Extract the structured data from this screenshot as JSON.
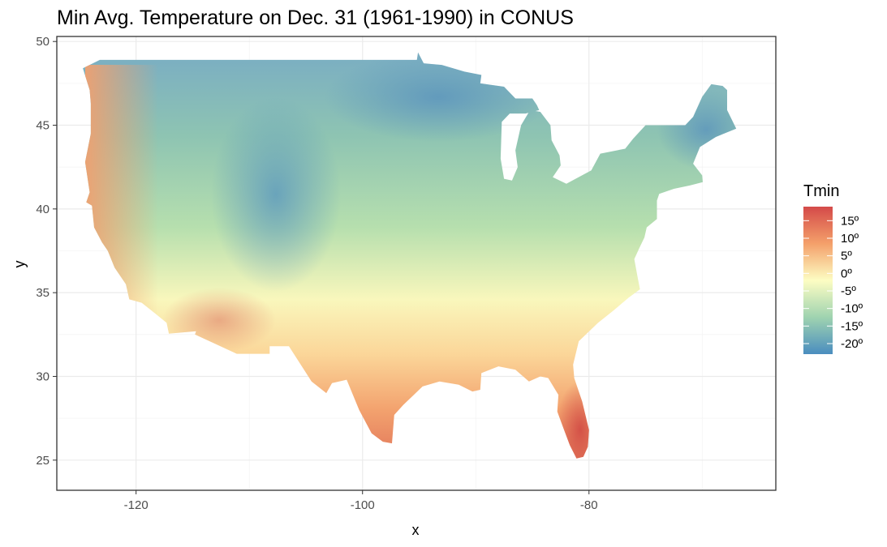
{
  "chart_data": {
    "type": "heatmap",
    "title": "Min Avg. Temperature on Dec. 31 (1961-1990) in CONUS",
    "xlabel": "x",
    "ylabel": "y",
    "xlim": [
      -127.0,
      -63.5
    ],
    "ylim": [
      23.2,
      50.3
    ],
    "x_ticks": [
      -120,
      -100,
      -80
    ],
    "x_tick_labels": [
      "-120",
      "-100",
      "-80"
    ],
    "y_ticks": [
      25,
      30,
      35,
      40,
      45,
      50
    ],
    "y_tick_labels": [
      "25",
      "30",
      "35",
      "40",
      "45",
      "50"
    ],
    "grid": true,
    "legend": {
      "title": "Tmin",
      "placement": "right",
      "range": [
        -23,
        19
      ],
      "breaks": [
        15,
        10,
        5,
        0,
        -5,
        -10,
        -15,
        -20
      ],
      "labels": [
        "15º",
        "10º",
        "5º",
        "0º",
        "-5º",
        "-10º",
        "-15º",
        "-20º"
      ],
      "palette": [
        "#2c7bb6",
        "#abd9e9",
        "#ffffbf",
        "#fdae61",
        "#d7191c"
      ]
    },
    "colors": {
      "cold": "#4e8fbb",
      "cool": "#9ccfa4",
      "neutral": "#fdfdc0",
      "warm": "#f4a470",
      "hot": "#d34a43"
    }
  }
}
